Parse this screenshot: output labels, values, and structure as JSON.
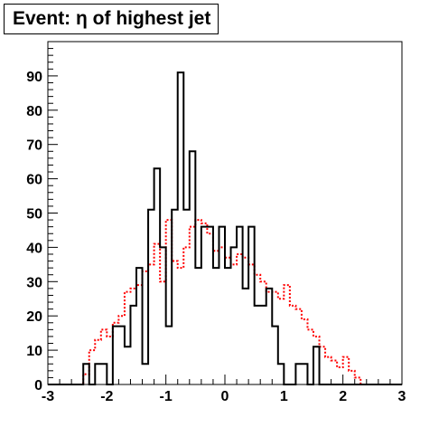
{
  "chart_data": {
    "type": "histogram",
    "title": "Event: η of highest jet",
    "xlabel": "",
    "ylabel": "",
    "xlim": [
      -3,
      3
    ],
    "ylim": [
      0,
      100
    ],
    "grid": false,
    "x_ticks": [
      "-3",
      "-2",
      "-1",
      "0",
      "1",
      "2",
      "3"
    ],
    "y_ticks": [
      "0",
      "10",
      "20",
      "30",
      "40",
      "50",
      "60",
      "70",
      "80",
      "90"
    ],
    "bin_edges": [
      -3.0,
      -2.9,
      -2.8,
      -2.7,
      -2.6,
      -2.5,
      -2.4,
      -2.3,
      -2.2,
      -2.1,
      -2.0,
      -1.9,
      -1.8,
      -1.7,
      -1.6,
      -1.5,
      -1.4,
      -1.3,
      -1.2,
      -1.1,
      -1.0,
      -0.9,
      -0.8,
      -0.7,
      -0.6,
      -0.5,
      -0.4,
      -0.3,
      -0.2,
      -0.1,
      0.0,
      0.1,
      0.2,
      0.3,
      0.4,
      0.5,
      0.6,
      0.7,
      0.8,
      0.9,
      1.0,
      1.1,
      1.2,
      1.3,
      1.4,
      1.5,
      1.6,
      1.7,
      1.8,
      1.9,
      2.0,
      2.1,
      2.2,
      2.3,
      2.4,
      2.5,
      2.6,
      2.7,
      2.8,
      2.9,
      3.0
    ],
    "series": [
      {
        "style": "solid",
        "color": "#000000",
        "values": [
          0,
          0,
          0,
          0,
          0,
          0,
          6,
          0,
          6,
          6,
          0,
          17,
          17,
          11,
          23,
          34,
          6,
          51,
          63,
          40,
          17,
          51,
          91,
          51,
          68,
          34,
          46,
          46,
          34,
          46,
          34,
          40,
          46,
          28,
          46,
          23,
          23,
          28,
          17,
          6,
          0,
          0,
          6,
          6,
          0,
          11,
          0,
          0,
          0,
          0,
          0,
          0,
          0,
          0,
          0,
          0,
          0,
          0,
          0,
          0
        ]
      },
      {
        "style": "dotted",
        "color": "#ff0000",
        "values": [
          0,
          0,
          0,
          0,
          0,
          0,
          3,
          10,
          13,
          16,
          14,
          18,
          20,
          27,
          28,
          29,
          33,
          35,
          41,
          30,
          48,
          36,
          34,
          40,
          46,
          48,
          47,
          44,
          39,
          40,
          37,
          35,
          38,
          37,
          35,
          32,
          30,
          27,
          27,
          25,
          29,
          23,
          22,
          19,
          16,
          14,
          11,
          8,
          7,
          5,
          8,
          4,
          2,
          0,
          0,
          0,
          0,
          0,
          0,
          0
        ]
      }
    ]
  }
}
